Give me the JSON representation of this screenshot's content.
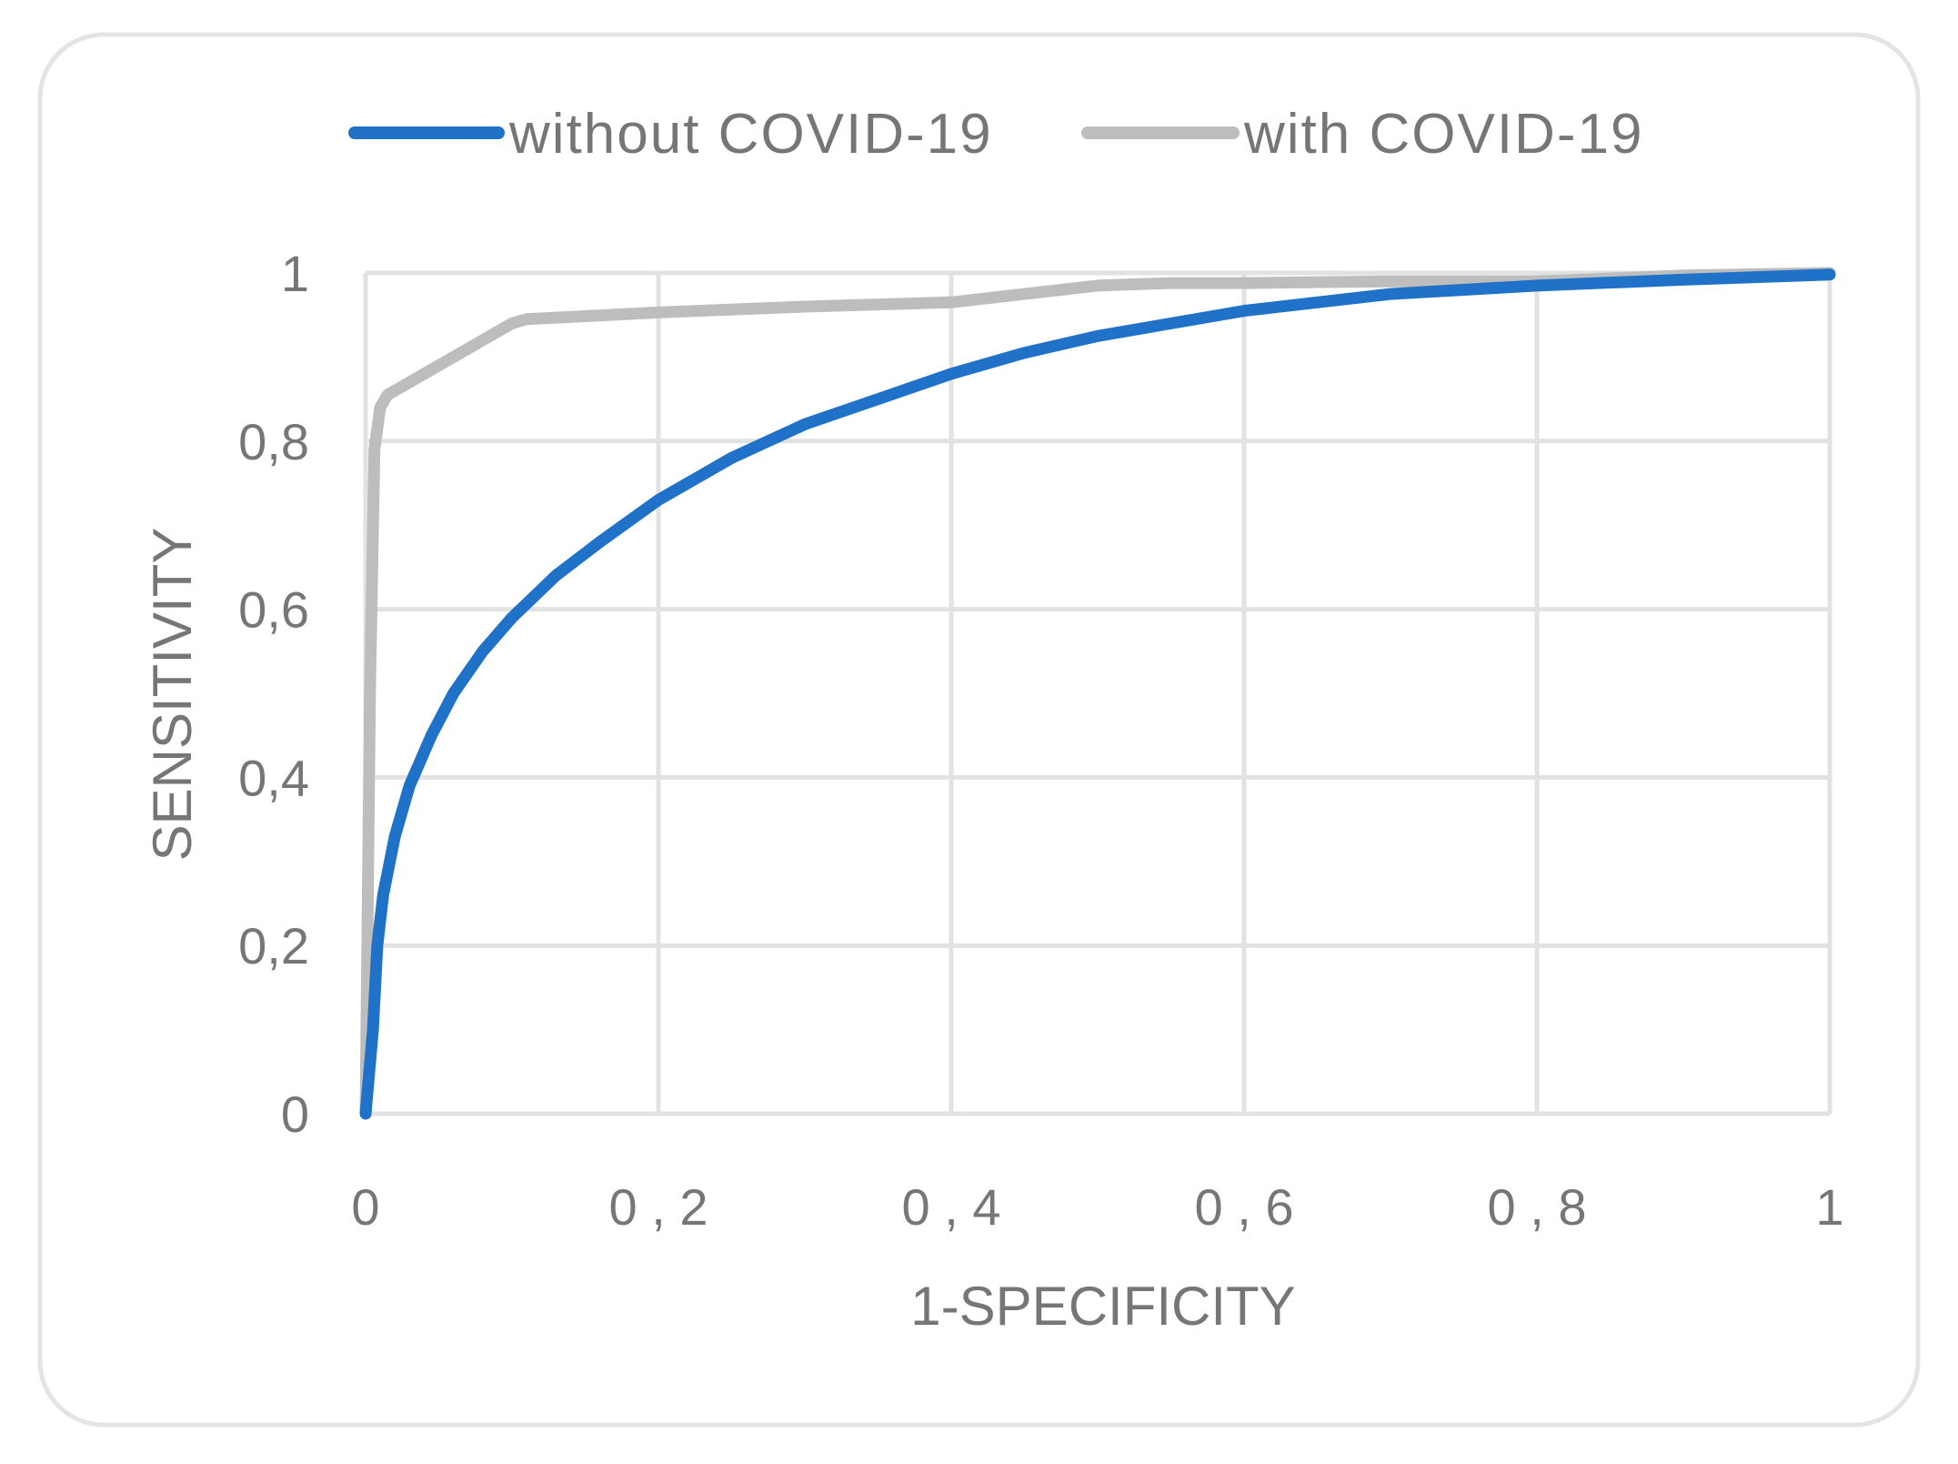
{
  "chart_data": {
    "type": "line",
    "title": "",
    "xlabel": "1-SPECIFICITY",
    "ylabel": "SENSITIVITY",
    "xlim": [
      0,
      1
    ],
    "ylim": [
      0,
      1
    ],
    "grid": true,
    "legend_position": "top",
    "x_ticks": [
      0,
      0.2,
      0.4,
      0.6,
      0.8,
      1
    ],
    "x_tick_labels": [
      "0",
      "0 , 2",
      "0 , 4",
      "0 , 6",
      "0 , 8",
      "1"
    ],
    "y_ticks": [
      0,
      0.2,
      0.4,
      0.6,
      0.8,
      1
    ],
    "y_tick_labels": [
      "0",
      "0,2",
      "0,4",
      "0,6",
      "0,8",
      "1"
    ],
    "series": [
      {
        "name": "without COVID-19",
        "color": "#1f72c8",
        "x": [
          0,
          0.005,
          0.008,
          0.012,
          0.02,
          0.03,
          0.045,
          0.06,
          0.08,
          0.1,
          0.13,
          0.16,
          0.2,
          0.25,
          0.3,
          0.35,
          0.4,
          0.45,
          0.5,
          0.6,
          0.7,
          0.8,
          0.9,
          1.0
        ],
        "y": [
          0,
          0.1,
          0.2,
          0.26,
          0.33,
          0.39,
          0.45,
          0.5,
          0.55,
          0.59,
          0.64,
          0.68,
          0.73,
          0.78,
          0.82,
          0.85,
          0.88,
          0.905,
          0.925,
          0.955,
          0.975,
          0.985,
          0.992,
          0.998
        ]
      },
      {
        "name": "with COVID-19",
        "color": "#bdbdbd",
        "x": [
          0,
          0.003,
          0.006,
          0.01,
          0.015,
          0.02,
          0.05,
          0.08,
          0.1,
          0.11,
          0.2,
          0.3,
          0.4,
          0.45,
          0.5,
          0.55,
          0.6,
          0.7,
          0.8,
          0.9,
          1.0
        ],
        "y": [
          0,
          0.5,
          0.79,
          0.84,
          0.855,
          0.86,
          0.89,
          0.92,
          0.94,
          0.945,
          0.953,
          0.96,
          0.965,
          0.975,
          0.985,
          0.988,
          0.988,
          0.99,
          0.99,
          0.997,
          1.0
        ]
      }
    ]
  }
}
